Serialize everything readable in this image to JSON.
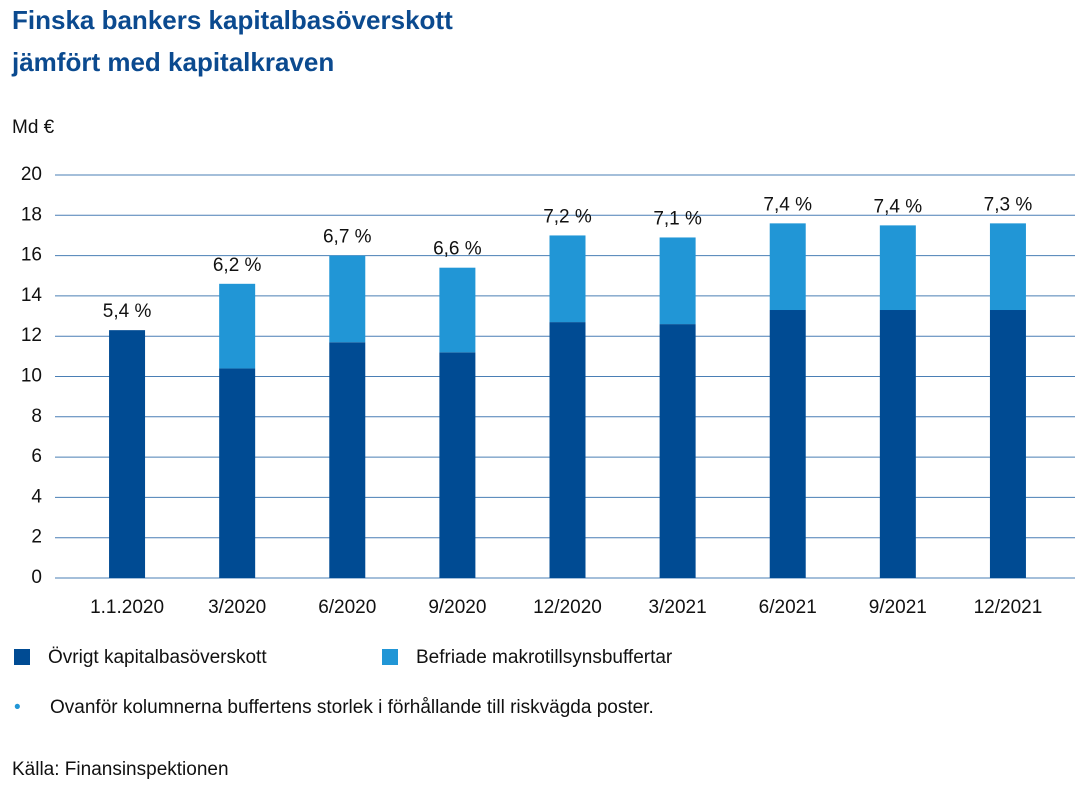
{
  "chart_data": {
    "type": "stacked_bar",
    "title": [
      "Finska bankers kapitalbasöverskott",
      "jämfört med kapitalkraven"
    ],
    "ylabel": "Md €",
    "categories": [
      "1.1.2020",
      "3/2020",
      "6/2020",
      "9/2020",
      "12/2020",
      "3/2021",
      "6/2021",
      "9/2021",
      "12/2021"
    ],
    "series": [
      {
        "name": "Övrigt kapitalbasöverskott",
        "color": "#004b93",
        "values": [
          12.3,
          10.4,
          11.7,
          11.2,
          12.7,
          12.6,
          13.3,
          13.3,
          13.3
        ]
      },
      {
        "name": "Befriade makrotillsynsbuffertar",
        "color": "#2196d6",
        "values": [
          0,
          4.2,
          4.3,
          4.2,
          4.3,
          4.3,
          4.3,
          4.2,
          4.3
        ]
      }
    ],
    "annotations": [
      "5,4 %",
      "6,2 %",
      "6,7 %",
      "6,6 %",
      "7,2 %",
      "7,1 %",
      "7,4 %",
      "7,4 %",
      "7,3 %"
    ],
    "ylim": [
      0,
      20
    ],
    "yticks": [
      0,
      2,
      4,
      6,
      8,
      10,
      12,
      14,
      16,
      18,
      20
    ],
    "grid": true,
    "footnote_bullet": "•",
    "footnote": "Ovanför kolumnerna buffertens storlek i förhållande till riskvägda poster.",
    "source": "Källa: Finansinspektionen"
  }
}
